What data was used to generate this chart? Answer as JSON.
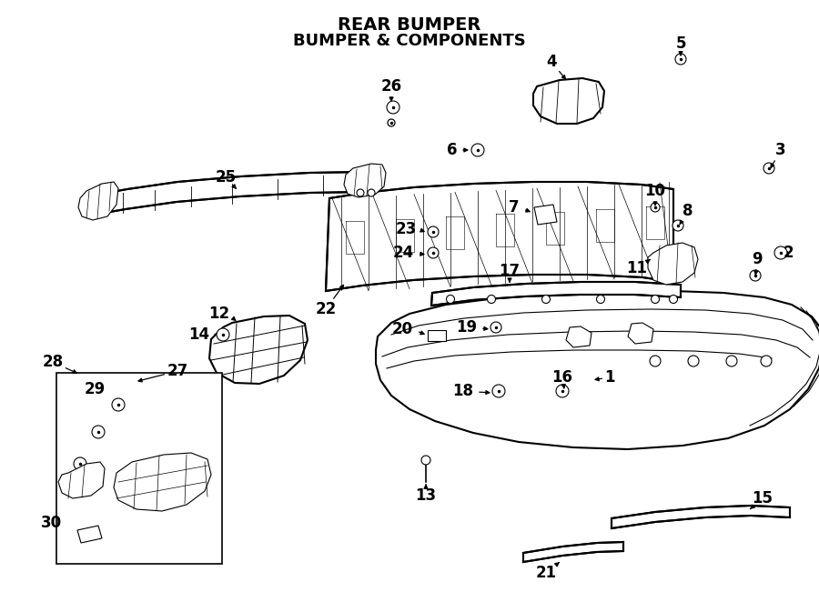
{
  "title": "REAR BUMPER",
  "subtitle": "BUMPER & COMPONENTS",
  "bg_color": "#ffffff",
  "lc": "#000000",
  "lw_main": 1.5,
  "lw_thin": 0.8,
  "fs_label": 12,
  "fs_title": 14,
  "figw": 9.0,
  "figh": 6.62,
  "dpi": 100,
  "xlim": [
    0,
    900
  ],
  "ylim": [
    0,
    662
  ]
}
